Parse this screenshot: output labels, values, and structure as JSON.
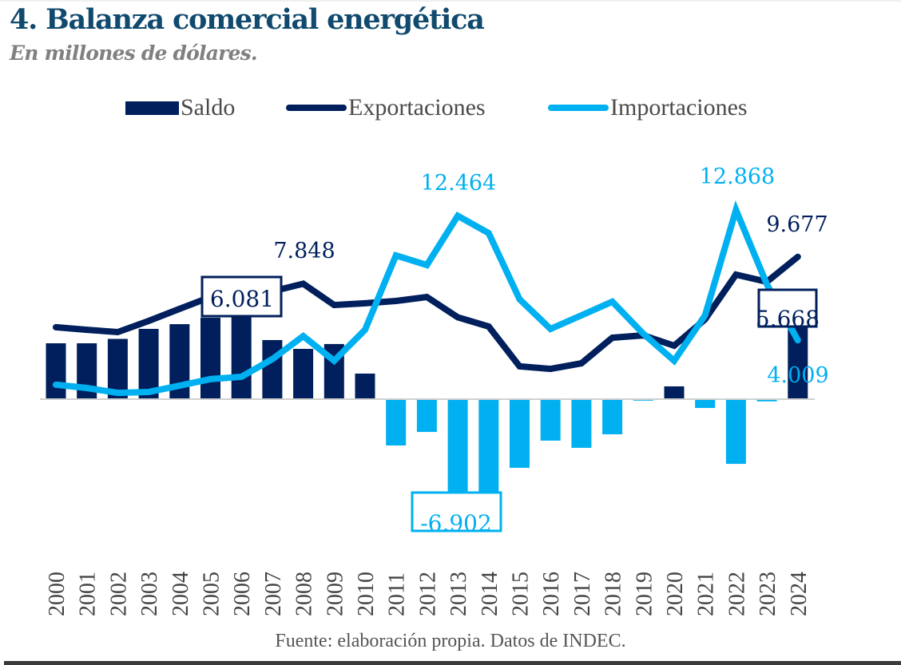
{
  "header": {
    "title": "4. Balanza comercial energética",
    "subtitle": "En millones de dólares."
  },
  "legend": {
    "items": [
      {
        "label": "Saldo",
        "kind": "bar",
        "color": "#001f5c"
      },
      {
        "label": "Exportaciones",
        "kind": "line",
        "color": "#001f5c"
      },
      {
        "label": "Importaciones",
        "kind": "line",
        "color": "#00b0f0"
      }
    ]
  },
  "source": "Fuente: elaboración propia. Datos de INDEC.",
  "chart_data": {
    "type": "bar+line",
    "title": "4. Balanza comercial energética",
    "subtitle": "En millones de dólares.",
    "xlabel": "",
    "ylabel": "Millones de dólares",
    "ylim": [
      -7000,
      13000
    ],
    "grid": false,
    "legend_position": "top",
    "categories": [
      "2000",
      "2001",
      "2002",
      "2003",
      "2004",
      "2005",
      "2006",
      "2007",
      "2008",
      "2009",
      "2010",
      "2011",
      "2012",
      "2013",
      "2014",
      "2015",
      "2016",
      "2017",
      "2018",
      "2019",
      "2020",
      "2021",
      "2022",
      "2023",
      "2024"
    ],
    "colors": {
      "saldo_positive": "#001f5c",
      "saldo_negative": "#00b0f0",
      "exportaciones": "#001f5c",
      "importaciones": "#00b0f0"
    },
    "series": [
      {
        "name": "Saldo",
        "type": "bar",
        "values": [
          3800,
          3800,
          4100,
          4780,
          5100,
          5540,
          6081,
          4020,
          3420,
          3750,
          1740,
          -3150,
          -2230,
          -6902,
          -6350,
          -4670,
          -2820,
          -3310,
          -2390,
          -100,
          870,
          -600,
          -4400,
          -150,
          5668
        ]
      },
      {
        "name": "Exportaciones",
        "type": "line",
        "values": [
          4890,
          4720,
          4560,
          5320,
          6140,
          6950,
          7490,
          7330,
          7848,
          6400,
          6520,
          6680,
          6950,
          5562,
          4940,
          2230,
          2060,
          2440,
          4180,
          4340,
          3640,
          5430,
          8470,
          7980,
          9677
        ]
      },
      {
        "name": "Importaciones",
        "type": "line",
        "values": [
          980,
          760,
          430,
          490,
          920,
          1360,
          1520,
          2720,
          4290,
          2610,
          4720,
          9770,
          9120,
          12464,
          11290,
          6790,
          4780,
          5700,
          6630,
          4450,
          2610,
          5700,
          12868,
          7800,
          4009
        ]
      }
    ],
    "annotations": [
      {
        "series": "Saldo",
        "category": "2006",
        "text": "6.081",
        "boxed": true,
        "color": "#001f5c"
      },
      {
        "series": "Exportaciones",
        "category": "2008",
        "text": "7.848",
        "boxed": false,
        "color": "#001f5c"
      },
      {
        "series": "Importaciones",
        "category": "2013",
        "text": "12.464",
        "boxed": false,
        "color": "#00b0f0"
      },
      {
        "series": "Saldo",
        "category": "2013",
        "text": "-6.902",
        "boxed": true,
        "color": "#00b0f0"
      },
      {
        "series": "Importaciones",
        "category": "2022",
        "text": "12.868",
        "boxed": false,
        "color": "#00b0f0"
      },
      {
        "series": "Exportaciones",
        "category": "2024",
        "text": "9.677",
        "boxed": false,
        "color": "#001f5c"
      },
      {
        "series": "Saldo",
        "category": "2024",
        "text": "5.668",
        "boxed": true,
        "color": "#001f5c"
      },
      {
        "series": "Importaciones",
        "category": "2024",
        "text": "4.009",
        "boxed": false,
        "color": "#00b0f0"
      }
    ]
  }
}
